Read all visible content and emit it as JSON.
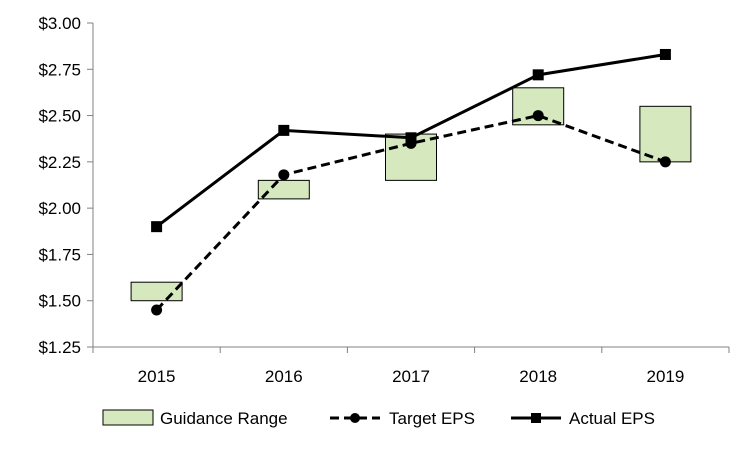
{
  "chart_data": {
    "type": "line",
    "title": "",
    "xlabel": "",
    "ylabel": "",
    "categories": [
      "2015",
      "2016",
      "2017",
      "2018",
      "2019"
    ],
    "ylim": [
      1.25,
      3.0
    ],
    "yticks": [
      1.25,
      1.5,
      1.75,
      2.0,
      2.25,
      2.5,
      2.75,
      3.0
    ],
    "ytick_labels": [
      "$1.25",
      "$1.50",
      "$1.75",
      "$2.00",
      "$2.25",
      "$2.50",
      "$2.75",
      "$3.00"
    ],
    "grid": false,
    "legend_position": "bottom",
    "guidance_range": {
      "name": "Guidance Range",
      "low": [
        1.5,
        2.05,
        2.15,
        2.45,
        2.25
      ],
      "high": [
        1.6,
        2.15,
        2.4,
        2.65,
        2.55
      ],
      "color": "#d6e8bd",
      "border": "#000000"
    },
    "series": [
      {
        "name": "Target EPS",
        "values": [
          1.45,
          2.18,
          2.35,
          2.5,
          2.25
        ],
        "style": "dashed",
        "marker": "circle",
        "color": "#000000"
      },
      {
        "name": "Actual EPS",
        "values": [
          1.9,
          2.42,
          2.38,
          2.72,
          2.83
        ],
        "style": "solid",
        "marker": "square",
        "color": "#000000"
      }
    ]
  }
}
